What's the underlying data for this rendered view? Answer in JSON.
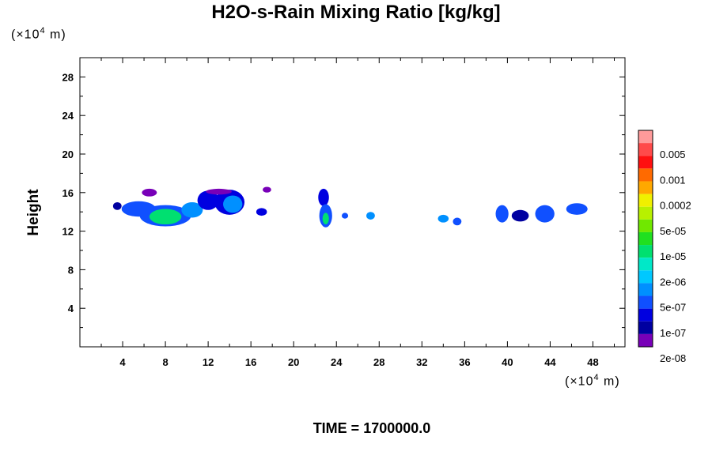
{
  "chart_data": {
    "type": "heatmap",
    "title": "H2O-s-Rain Mixing Ratio [kg/kg]",
    "ylabel": "Height",
    "x_unit_prefix": "(×10",
    "x_unit_exp": "4",
    "x_unit_suffix": " m)",
    "y_unit_prefix": "(×10",
    "y_unit_exp": "4",
    "y_unit_suffix": " m)",
    "xlim": [
      0,
      51
    ],
    "ylim": [
      0,
      30
    ],
    "x_ticks": [
      "4",
      "8",
      "12",
      "16",
      "20",
      "24",
      "28",
      "32",
      "36",
      "40",
      "44",
      "48"
    ],
    "y_ticks": [
      "4",
      "8",
      "12",
      "16",
      "20",
      "24",
      "28"
    ],
    "legend_labels": [
      "0.005",
      "0.001",
      "0.0002",
      "5e-05",
      "1e-05",
      "2e-06",
      "5e-07",
      "1e-07",
      "2e-08"
    ],
    "legend_colors": [
      "#ff9a9a",
      "#ff4a4a",
      "#ff1010",
      "#ff6a00",
      "#ffa800",
      "#f0f000",
      "#b8f000",
      "#70e800",
      "#20e020",
      "#00e070",
      "#00e8c8",
      "#00c8ff",
      "#0090ff",
      "#1050ff",
      "#0000e0",
      "#0000a0",
      "#7800b8"
    ],
    "cells": [
      {
        "x": 3.5,
        "y": 14.6,
        "rx": 0.4,
        "ry": 0.4,
        "level": 1
      },
      {
        "x": 5.5,
        "y": 14.3,
        "rx": 1.6,
        "ry": 0.8,
        "level": 3
      },
      {
        "x": 8.0,
        "y": 13.6,
        "rx": 2.4,
        "ry": 1.1,
        "level": 3
      },
      {
        "x": 8.0,
        "y": 13.5,
        "rx": 1.5,
        "ry": 0.8,
        "level": 5
      },
      {
        "x": 10.5,
        "y": 14.2,
        "rx": 1.0,
        "ry": 0.8,
        "level": 4
      },
      {
        "x": 6.5,
        "y": 16.0,
        "rx": 0.7,
        "ry": 0.4,
        "level": 0
      },
      {
        "x": 12.0,
        "y": 15.2,
        "rx": 1.0,
        "ry": 1.0,
        "level": 2
      },
      {
        "x": 14.0,
        "y": 15.0,
        "rx": 1.4,
        "ry": 1.3,
        "level": 2
      },
      {
        "x": 14.3,
        "y": 14.8,
        "rx": 0.9,
        "ry": 0.9,
        "level": 4
      },
      {
        "x": 13.0,
        "y": 16.1,
        "rx": 1.2,
        "ry": 0.3,
        "level": 0
      },
      {
        "x": 17.0,
        "y": 14.0,
        "rx": 0.5,
        "ry": 0.4,
        "level": 2
      },
      {
        "x": 17.5,
        "y": 16.3,
        "rx": 0.4,
        "ry": 0.3,
        "level": 0
      },
      {
        "x": 22.8,
        "y": 15.5,
        "rx": 0.5,
        "ry": 0.9,
        "level": 2
      },
      {
        "x": 23.0,
        "y": 13.6,
        "rx": 0.6,
        "ry": 1.2,
        "level": 3
      },
      {
        "x": 23.0,
        "y": 13.3,
        "rx": 0.3,
        "ry": 0.6,
        "level": 5
      },
      {
        "x": 24.8,
        "y": 13.6,
        "rx": 0.3,
        "ry": 0.3,
        "level": 3
      },
      {
        "x": 27.2,
        "y": 13.6,
        "rx": 0.4,
        "ry": 0.4,
        "level": 4
      },
      {
        "x": 34.0,
        "y": 13.3,
        "rx": 0.5,
        "ry": 0.4,
        "level": 4
      },
      {
        "x": 35.3,
        "y": 13.0,
        "rx": 0.4,
        "ry": 0.4,
        "level": 3
      },
      {
        "x": 39.5,
        "y": 13.8,
        "rx": 0.6,
        "ry": 0.9,
        "level": 3
      },
      {
        "x": 41.2,
        "y": 13.6,
        "rx": 0.8,
        "ry": 0.6,
        "level": 1
      },
      {
        "x": 43.5,
        "y": 13.8,
        "rx": 0.9,
        "ry": 0.9,
        "level": 3
      },
      {
        "x": 46.5,
        "y": 14.3,
        "rx": 1.0,
        "ry": 0.6,
        "level": 3
      }
    ]
  },
  "time_label": "TIME = 1700000.0"
}
